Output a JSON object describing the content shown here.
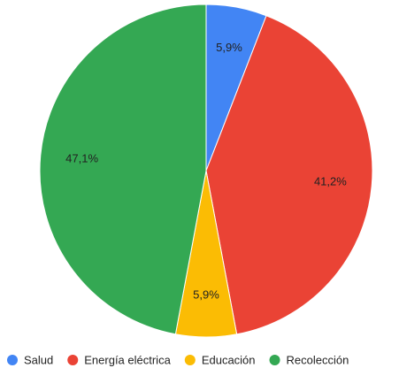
{
  "chart_data": {
    "type": "pie",
    "categories": [
      "Salud",
      "Energía eléctrica",
      "Educación",
      "Recolección"
    ],
    "values": [
      5.9,
      41.2,
      5.9,
      47.1
    ],
    "value_labels": [
      "5,9%",
      "41,2%",
      "5,9%",
      "47,1%"
    ],
    "colors": [
      "#4285f4",
      "#ea4335",
      "#fbbc04",
      "#34a853"
    ],
    "legend": "bottom"
  }
}
